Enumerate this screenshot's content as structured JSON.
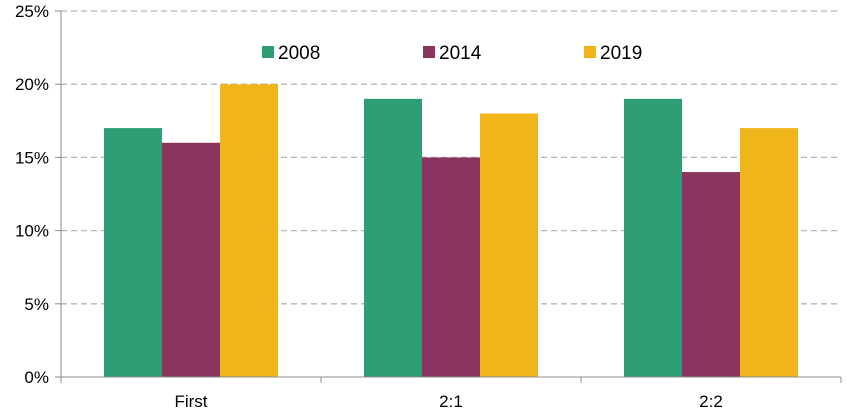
{
  "chart_data": {
    "type": "bar",
    "categories": [
      "First",
      "2:1",
      "2:2"
    ],
    "series": [
      {
        "name": "2008",
        "values": [
          17,
          19,
          19
        ],
        "color": "#2e9e75"
      },
      {
        "name": "2014",
        "values": [
          16,
          15,
          14
        ],
        "color": "#8b3460"
      },
      {
        "name": "2019",
        "values": [
          20,
          18,
          17
        ],
        "color": "#f0b51a"
      }
    ],
    "ylim": [
      0,
      25
    ],
    "yticks": [
      0,
      5,
      10,
      15,
      20,
      25
    ],
    "ytick_labels": [
      "0%",
      "5%",
      "10%",
      "15%",
      "20%",
      "25%"
    ],
    "grid": true,
    "grid_style": "dashed",
    "legend_position": "top-center",
    "title": "",
    "xlabel": "",
    "ylabel": ""
  }
}
